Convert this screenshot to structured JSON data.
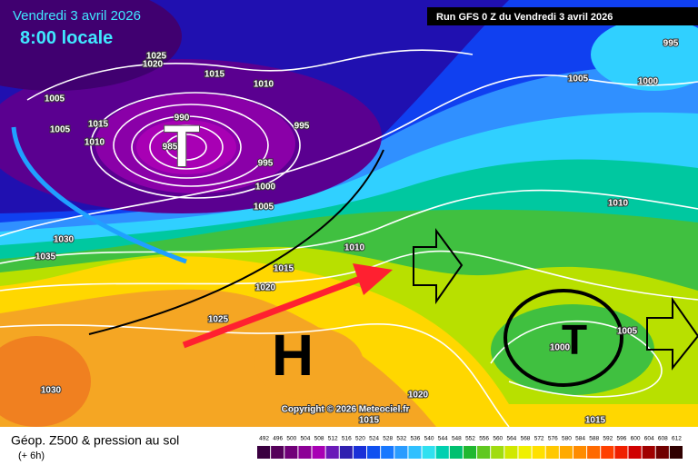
{
  "header": {
    "date": "Vendredi 3 avril 2026",
    "time": "8:00 locale",
    "run": "Run GFS 0 Z du Vendredi 3 avril 2026"
  },
  "map": {
    "isobars": [
      1025,
      1020,
      1015,
      1010,
      1005,
      1015,
      1005,
      1010,
      990,
      985,
      995,
      995,
      1000,
      1005,
      1030,
      1035,
      1010,
      1015,
      1020,
      1025,
      1030,
      1020,
      1015,
      1015,
      1005,
      1000,
      995,
      1010,
      1000,
      1005
    ],
    "lows": [
      "T",
      "T"
    ],
    "high": "H",
    "copyright": "Copyright © 2026 Meteociel.fr"
  },
  "footer": {
    "title": "Géop. Z500 & pression au sol",
    "step": "(+ 6h)"
  },
  "scale": {
    "values": [
      492,
      496,
      500,
      504,
      508,
      512,
      516,
      520,
      524,
      528,
      532,
      536,
      540,
      544,
      548,
      552,
      556,
      560,
      564,
      568,
      572,
      576,
      580,
      584,
      588,
      592,
      596,
      600,
      604,
      608,
      612
    ],
    "colors": [
      "#3a0040",
      "#55005a",
      "#700078",
      "#8c0096",
      "#a800b4",
      "#6a1ab8",
      "#3020b0",
      "#1a30d8",
      "#1050f0",
      "#1878ff",
      "#2a9cff",
      "#30c0ff",
      "#30e0f0",
      "#00d0b0",
      "#00c070",
      "#20b830",
      "#60c820",
      "#a0dc10",
      "#d0e800",
      "#f0f000",
      "#ffe000",
      "#ffc800",
      "#ffaa00",
      "#ff8c00",
      "#ff6a00",
      "#ff4000",
      "#f02000",
      "#d00000",
      "#a00000",
      "#700000",
      "#300000"
    ]
  }
}
